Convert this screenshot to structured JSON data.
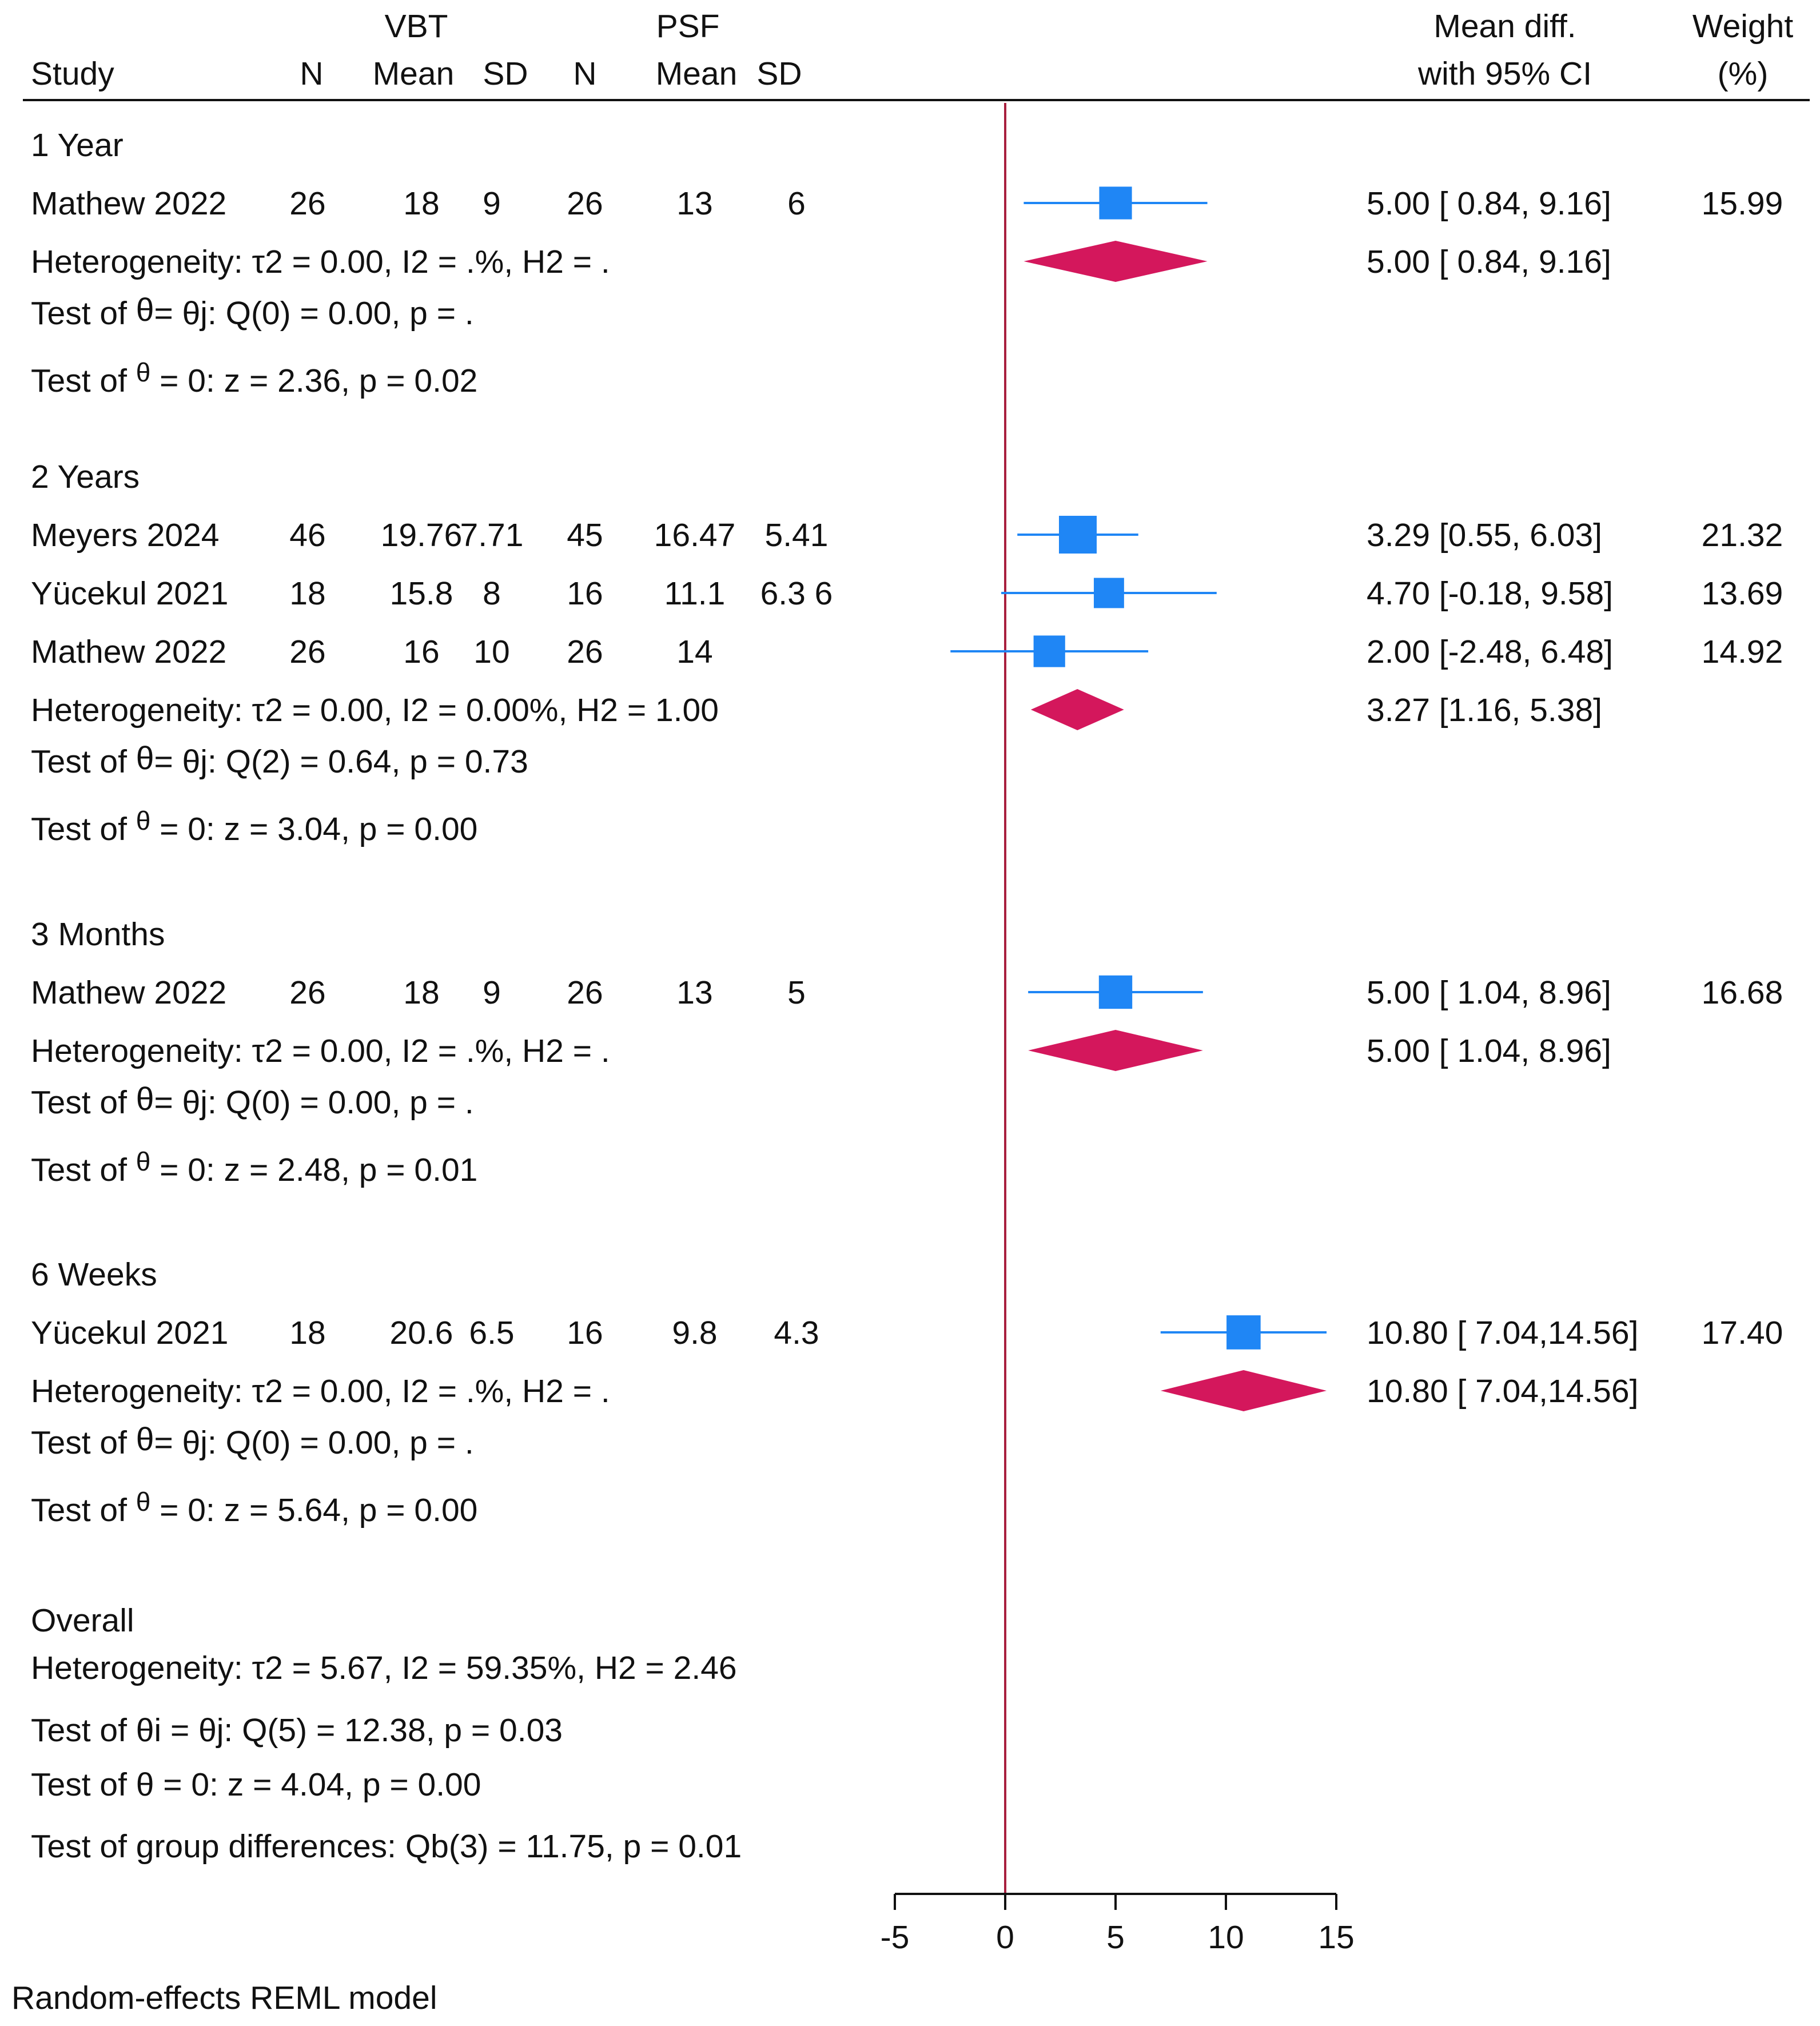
{
  "chart_data": {
    "type": "forest",
    "model_note": "Random-effects REML model",
    "xlim": [
      -5,
      15
    ],
    "xticks": [
      -5,
      0,
      5,
      10,
      15
    ],
    "xtick_labels": [
      "-5",
      "0",
      "5",
      "10",
      "15"
    ],
    "null_line": 0,
    "colors": {
      "marker": "#1f86f5",
      "ci": "#1f86f5",
      "diamond": "#d4175c",
      "null_line": "#a8203f",
      "text": "#111111"
    },
    "header": {
      "group_vbt": "VBT",
      "group_psf": "PSF",
      "study": "Study",
      "n": "N",
      "mean": "Mean",
      "sd": "SD",
      "effect_line1": "Mean diff.",
      "effect_line2": "with 95% CI",
      "weight_line1": "Weight",
      "weight_line2": "(%)"
    },
    "subgroups": [
      {
        "name": "1 Year",
        "studies": [
          {
            "study": "Mathew 2022",
            "n1": "26",
            "mean1": "18",
            "sd1": "9",
            "n2": "26",
            "mean2": "13",
            "sd2": "6",
            "md": 5.0,
            "lo": 0.84,
            "hi": 9.16,
            "weight": 15.99,
            "ci_text": "5.00 [  0.84,      9.16]",
            "weight_text": "15.99"
          }
        ],
        "summary": {
          "md": 5.0,
          "lo": 0.84,
          "hi": 9.16,
          "ci_text": "5.00 [  0.84,      9.16]"
        },
        "heterogeneity": "Heterogeneity: τ2 = 0.00, I2 = .%, H2 = .",
        "test_homog_pre": "Test of ",
        "test_homog_post": "= θj: Q(0) = 0.00, p = .",
        "test_theta_pre": "Test of ",
        "test_theta_sym": "θ",
        "test_theta_post": " = 0: z = 2.36, p = 0.02"
      },
      {
        "name": "2 Years",
        "studies": [
          {
            "study": "Meyers 2024",
            "n1": "46",
            "mean1": "19.76",
            "sd1": "7.71",
            "n2": "45",
            "mean2": "16.47",
            "sd2": "5.41",
            "md": 3.29,
            "lo": 0.55,
            "hi": 6.03,
            "weight": 21.32,
            "ci_text": "3.29    [0.55,      6.03]",
            "weight_text": "21.32"
          },
          {
            "study": "Yücekul 2021",
            "n1": "18",
            "mean1": "15.8",
            "sd1": "8",
            "n2": "16",
            "mean2": "11.1",
            "sd2": "6.3 6",
            "md": 4.7,
            "lo": -0.18,
            "hi": 9.58,
            "weight": 13.69,
            "ci_text": "4.70  [-0.18,      9.58]",
            "weight_text": "13.69"
          },
          {
            "study": "Mathew 2022",
            "n1": "26",
            "mean1": "16",
            "sd1": "10",
            "n2": "26",
            "mean2": "14",
            "sd2": "",
            "md": 2.0,
            "lo": -2.48,
            "hi": 6.48,
            "weight": 14.92,
            "ci_text": "2.00  [-2.48,      6.48]",
            "weight_text": "14.92"
          }
        ],
        "summary": {
          "md": 3.27,
          "lo": 1.16,
          "hi": 5.38,
          "ci_text": "3.27 [1.16,          5.38]"
        },
        "heterogeneity": "Heterogeneity: τ2 = 0.00, I2 = 0.00%, H2 = 1.00",
        "test_homog_pre": "Test of ",
        "test_homog_post": "= θj: Q(2) = 0.64, p = 0.73",
        "test_theta_pre": "Test of ",
        "test_theta_sym": "θ",
        "test_theta_post": " = 0: z = 3.04, p = 0.00"
      },
      {
        "name": "3 Months",
        "studies": [
          {
            "study": "Mathew 2022",
            "n1": "26",
            "mean1": "18",
            "sd1": "9",
            "n2": "26",
            "mean2": "13",
            "sd2": "5",
            "md": 5.0,
            "lo": 1.04,
            "hi": 8.96,
            "weight": 16.68,
            "ci_text": "5.00 [  1.04,      8.96]",
            "weight_text": "16.68"
          }
        ],
        "summary": {
          "md": 5.0,
          "lo": 1.04,
          "hi": 8.96,
          "ci_text": "5.00 [  1.04,      8.96]"
        },
        "heterogeneity": "Heterogeneity: τ2 = 0.00, I2 = .%, H2 = .",
        "test_homog_pre": "Test of ",
        "test_homog_post": "= θj: Q(0) = 0.00, p = .",
        "test_theta_pre": "Test of ",
        "test_theta_sym": "θ",
        "test_theta_post": " = 0: z = 2.48, p = 0.01"
      },
      {
        "name": "6 Weeks",
        "studies": [
          {
            "study": "Yücekul 2021",
            "n1": "18",
            "mean1": "20.6",
            "sd1": "6.5",
            "n2": "16",
            "mean2": "9.8",
            "sd2": "4.3",
            "md": 10.8,
            "lo": 7.04,
            "hi": 14.56,
            "weight": 17.4,
            "ci_text": "10.80 [  7.04,14.56]",
            "weight_text": "17.40"
          }
        ],
        "summary": {
          "md": 10.8,
          "lo": 7.04,
          "hi": 14.56,
          "ci_text": "10.80 [  7.04,14.56]"
        },
        "heterogeneity": "Heterogeneity: τ2 = 0.00, I2 = .%, H2 = .",
        "test_homog_pre": "Test of ",
        "test_homog_post": "= θj: Q(0) = 0.00, p = .",
        "test_theta_pre": "Test of ",
        "test_theta_sym": "θ",
        "test_theta_post": " = 0: z = 5.64, p = 0.00"
      }
    ],
    "overall": {
      "label": "Overall",
      "heterogeneity": "Heterogeneity: τ2 = 5.67, I2 = 59.35%, H2 = 2.46",
      "test_homog": "Test of θi = θj: Q(5) = 12.38, p = 0.03",
      "test_theta": "Test of θ = 0: z = 4.04, p = 0.00",
      "test_groups": "Test of group differences: Qb(3) = 11.75, p = 0.01"
    }
  }
}
